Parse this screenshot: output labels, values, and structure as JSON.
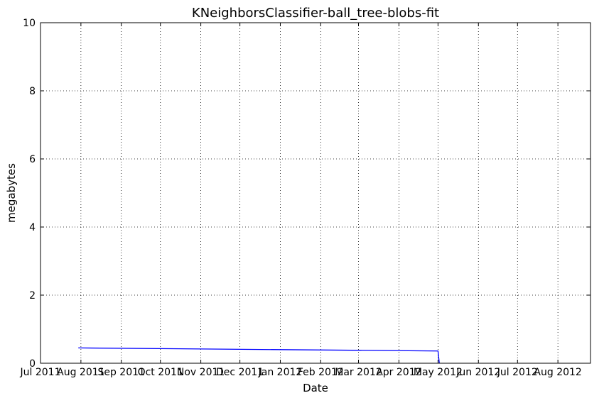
{
  "chart_data": {
    "type": "line",
    "title": "KNeighborsClassifier-ball_tree-blobs-fit",
    "xlabel": "Date",
    "ylabel": "megabytes",
    "xlim": [
      "2011-07-01",
      "2012-08-26"
    ],
    "ylim": [
      0,
      10
    ],
    "xticks": [
      {
        "date": "2011-07-01",
        "label": "Jul 2011"
      },
      {
        "date": "2011-08-01",
        "label": "Aug 2011"
      },
      {
        "date": "2011-09-01",
        "label": "Sep 2011"
      },
      {
        "date": "2011-10-01",
        "label": "Oct 2011"
      },
      {
        "date": "2011-11-01",
        "label": "Nov 2011"
      },
      {
        "date": "2011-12-01",
        "label": "Dec 2011"
      },
      {
        "date": "2012-01-01",
        "label": "Jan 2012"
      },
      {
        "date": "2012-02-01",
        "label": "Feb 2012"
      },
      {
        "date": "2012-03-01",
        "label": "Mar 2012"
      },
      {
        "date": "2012-04-01",
        "label": "Apr 2012"
      },
      {
        "date": "2012-05-01",
        "label": "May 2012"
      },
      {
        "date": "2012-06-01",
        "label": "Jun 2012"
      },
      {
        "date": "2012-07-01",
        "label": "Jul 2012"
      },
      {
        "date": "2012-08-01",
        "label": "Aug 2012"
      }
    ],
    "yticks": [
      0,
      2,
      4,
      6,
      8,
      10
    ],
    "grid": true,
    "series": [
      {
        "color": "#0000ff",
        "points": [
          {
            "x": "2011-07-30",
            "y": 0.45
          },
          {
            "x": "2012-04-01",
            "y": 0.37
          },
          {
            "x": "2012-05-01",
            "y": 0.36
          },
          {
            "x": "2012-05-02",
            "y": 0.0
          }
        ]
      }
    ]
  }
}
